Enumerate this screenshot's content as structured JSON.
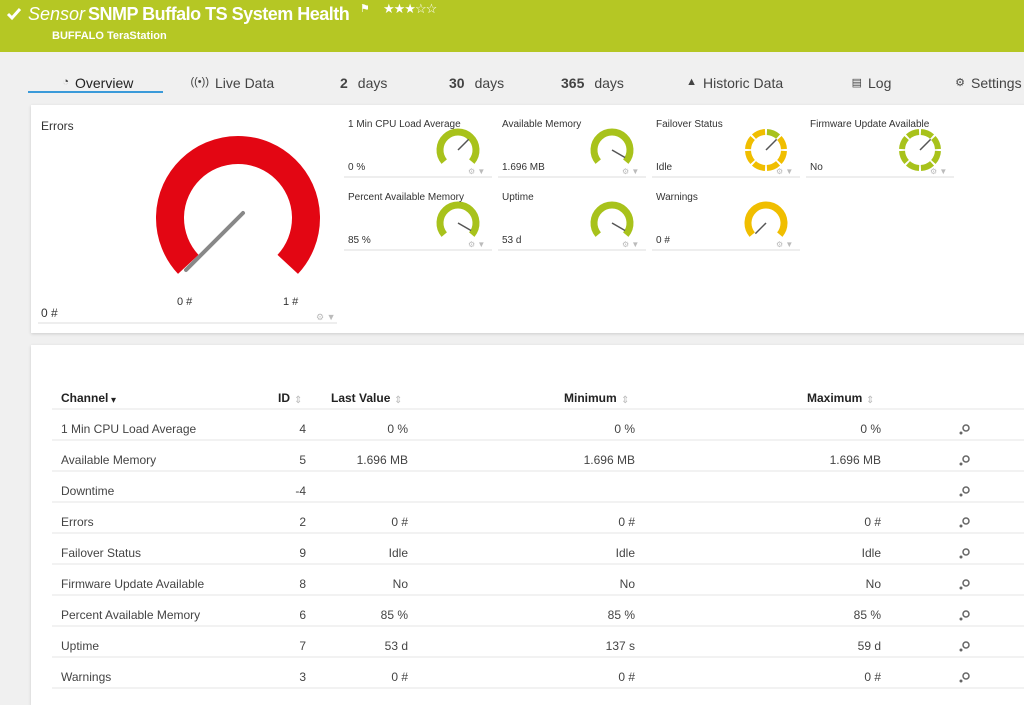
{
  "header": {
    "prefix": "Sensor",
    "title": "SNMP Buffalo TS System Health",
    "device": "BUFFALO TeraStation"
  },
  "tabs": [
    {
      "label": "Overview"
    },
    {
      "label": "Live Data"
    },
    {
      "count": "2",
      "label": "days"
    },
    {
      "count": "30",
      "label": "days"
    },
    {
      "count": "365",
      "label": "days"
    },
    {
      "label": "Historic Data"
    },
    {
      "label": "Log"
    },
    {
      "label": "Settings"
    }
  ],
  "main_gauge": {
    "name": "Errors",
    "value": "0 #",
    "min": "0 #",
    "max": "1 #",
    "color": "#e30613"
  },
  "gauges": [
    {
      "name": "1 Min CPU Load Average",
      "value": "0 %",
      "color": "#a8c21b"
    },
    {
      "name": "Available Memory",
      "value": "1.696 MB",
      "color": "#a8c21b"
    },
    {
      "name": "Failover Status",
      "value": "Idle",
      "color": "#f0be00"
    },
    {
      "name": "Firmware Update Available",
      "value": "No",
      "color": "#a8c21b"
    },
    {
      "name": "Percent Available Memory",
      "value": "85 %",
      "color": "#a8c21b"
    },
    {
      "name": "Uptime",
      "value": "53 d",
      "color": "#a8c21b"
    },
    {
      "name": "Warnings",
      "value": "0 #",
      "color": "#f0be00"
    }
  ],
  "table": {
    "headers": [
      "Channel",
      "ID",
      "Last Value",
      "Minimum",
      "Maximum"
    ],
    "rows": [
      [
        "1 Min CPU Load Average",
        "4",
        "0 %",
        "0 %",
        "0 %"
      ],
      [
        "Available Memory",
        "5",
        "1.696 MB",
        "1.696 MB",
        "1.696 MB"
      ],
      [
        "Downtime",
        "-4",
        "",
        "",
        ""
      ],
      [
        "Errors",
        "2",
        "0 #",
        "0 #",
        "0 #"
      ],
      [
        "Failover Status",
        "9",
        "Idle",
        "Idle",
        "Idle"
      ],
      [
        "Firmware Update Available",
        "8",
        "No",
        "No",
        "No"
      ],
      [
        "Percent Available Memory",
        "6",
        "85 %",
        "85 %",
        "85 %"
      ],
      [
        "Uptime",
        "7",
        "53 d",
        "137 s",
        "59 d"
      ],
      [
        "Warnings",
        "3",
        "0 #",
        "0 #",
        "0 #"
      ]
    ]
  }
}
